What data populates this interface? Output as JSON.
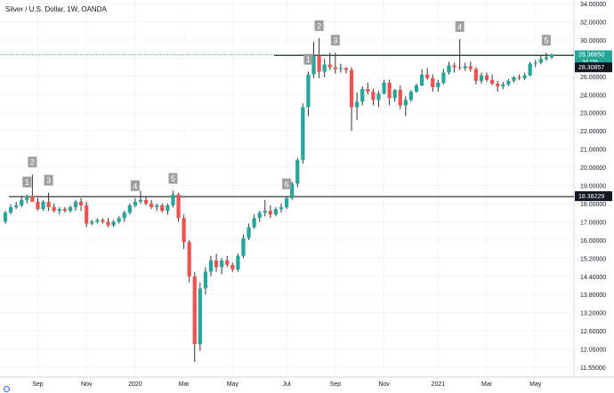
{
  "header": {
    "symbol_title": "Silver / U.S. Dollar, 1W, OANDA"
  },
  "colors": {
    "up": "#26a69a",
    "down": "#ef5350",
    "wick": "#333333",
    "level_line": "#000000",
    "current_line": "#26a69a",
    "label_bg": "#9e9e9e",
    "price_tag_current": "#26a69a",
    "price_tag_level": "#131722"
  },
  "icons": {
    "brand_logo": "tradingview-logo-icon"
  },
  "chart_data": {
    "type": "candlestick",
    "title": "Silver / U.S. Dollar, 1W, OANDA",
    "x_tick_labels": [
      "Sep",
      "Nov",
      "2020",
      "Mar",
      "May",
      "Jul",
      "Sep",
      "Nov",
      "2021",
      "Mar",
      "May"
    ],
    "y_tick_labels": [
      "34.00000",
      "32.00000",
      "30.00000",
      "28.00000",
      "26.00000",
      "24.00000",
      "23.00000",
      "22.00000",
      "21.00000",
      "20.00000",
      "19.00000",
      "18.00000",
      "17.00000",
      "16.00000",
      "15.20000",
      "14.40000",
      "13.80000",
      "13.20000",
      "12.60000",
      "12.05000",
      "11.55000"
    ],
    "y_range": [
      11.3,
      34.2
    ],
    "price_tags": {
      "current_price": "28.36650",
      "countdown": "3d 15h",
      "resistance": "28.30857",
      "support": "18.38229"
    },
    "levels": {
      "resistance": 28.30857,
      "support": 18.38229,
      "current": 28.3665
    },
    "wave_labels": [
      {
        "text": "1",
        "candle": 4
      },
      {
        "text": "2",
        "candle": 5
      },
      {
        "text": "3",
        "candle": 8
      },
      {
        "text": "4",
        "candle": 24
      },
      {
        "text": "5",
        "candle": 31
      },
      {
        "text": "6",
        "candle": 52
      },
      {
        "text": "1",
        "candle": 56
      },
      {
        "text": "2",
        "candle": 58
      },
      {
        "text": "3",
        "candle": 61
      },
      {
        "text": "4",
        "candle": 84
      },
      {
        "text": "5",
        "candle": 100
      }
    ],
    "candles": [
      [
        17.0,
        17.6,
        16.9,
        17.5
      ],
      [
        17.5,
        17.95,
        17.4,
        17.8
      ],
      [
        17.8,
        18.1,
        17.7,
        17.9
      ],
      [
        17.9,
        18.4,
        17.8,
        18.2
      ],
      [
        18.2,
        18.5,
        18.0,
        18.4
      ],
      [
        18.4,
        19.6,
        18.1,
        18.1
      ],
      [
        18.1,
        18.3,
        17.6,
        17.7
      ],
      [
        17.7,
        18.2,
        17.6,
        18.1
      ],
      [
        18.1,
        18.6,
        17.6,
        17.8
      ],
      [
        17.8,
        18.0,
        17.5,
        17.6
      ],
      [
        17.6,
        17.8,
        17.4,
        17.7
      ],
      [
        17.7,
        17.8,
        17.5,
        17.6
      ],
      [
        17.6,
        17.9,
        17.5,
        17.8
      ],
      [
        17.8,
        18.2,
        17.6,
        18.1
      ],
      [
        18.1,
        18.3,
        17.6,
        17.9
      ],
      [
        17.9,
        18.1,
        16.7,
        16.9
      ],
      [
        16.9,
        17.1,
        16.8,
        17.0
      ],
      [
        17.0,
        17.2,
        16.9,
        17.1
      ],
      [
        17.1,
        17.2,
        16.9,
        17.0
      ],
      [
        17.0,
        17.2,
        16.7,
        16.8
      ],
      [
        16.8,
        17.1,
        16.7,
        17.0
      ],
      [
        17.0,
        17.3,
        16.9,
        17.2
      ],
      [
        17.2,
        17.6,
        17.0,
        17.5
      ],
      [
        17.5,
        18.0,
        17.4,
        17.9
      ],
      [
        17.9,
        18.3,
        17.8,
        18.1
      ],
      [
        18.1,
        18.7,
        18.0,
        18.2
      ],
      [
        18.2,
        18.4,
        17.9,
        18.0
      ],
      [
        18.0,
        18.2,
        17.7,
        17.8
      ],
      [
        17.8,
        18.0,
        17.6,
        17.9
      ],
      [
        17.9,
        18.0,
        17.5,
        17.6
      ],
      [
        17.6,
        18.0,
        17.4,
        17.9
      ],
      [
        17.9,
        18.7,
        17.8,
        18.5
      ],
      [
        18.5,
        18.6,
        17.0,
        17.2
      ],
      [
        17.2,
        17.4,
        15.6,
        15.9
      ],
      [
        15.9,
        16.0,
        14.2,
        14.4
      ],
      [
        14.4,
        14.6,
        11.7,
        12.2
      ],
      [
        12.2,
        14.2,
        12.0,
        14.0
      ],
      [
        14.0,
        14.8,
        13.8,
        14.6
      ],
      [
        14.6,
        15.3,
        14.4,
        15.1
      ],
      [
        15.1,
        15.4,
        14.6,
        14.8
      ],
      [
        14.8,
        15.2,
        14.5,
        15.1
      ],
      [
        15.1,
        15.3,
        14.8,
        14.9
      ],
      [
        14.9,
        15.0,
        14.6,
        14.7
      ],
      [
        14.7,
        15.4,
        14.6,
        15.3
      ],
      [
        15.3,
        16.3,
        15.2,
        16.1
      ],
      [
        16.1,
        16.9,
        16.0,
        16.7
      ],
      [
        16.7,
        17.4,
        16.6,
        17.2
      ],
      [
        17.2,
        17.6,
        17.0,
        17.5
      ],
      [
        17.5,
        18.2,
        17.3,
        17.6
      ],
      [
        17.6,
        17.9,
        17.2,
        17.4
      ],
      [
        17.4,
        17.8,
        17.3,
        17.7
      ],
      [
        17.7,
        18.0,
        17.5,
        17.8
      ],
      [
        17.8,
        18.4,
        17.7,
        18.3
      ],
      [
        18.3,
        19.2,
        18.2,
        19.1
      ],
      [
        19.1,
        20.5,
        18.9,
        20.4
      ],
      [
        20.4,
        23.5,
        20.2,
        23.3
      ],
      [
        23.3,
        26.5,
        22.8,
        26.2
      ],
      [
        26.2,
        29.8,
        25.8,
        28.3
      ],
      [
        28.3,
        30.2,
        25.8,
        26.5
      ],
      [
        26.5,
        27.9,
        25.9,
        27.3
      ],
      [
        27.3,
        28.6,
        26.7,
        27.0
      ],
      [
        27.0,
        28.6,
        26.3,
        26.8
      ],
      [
        26.8,
        27.4,
        26.4,
        26.9
      ],
      [
        26.9,
        27.0,
        26.3,
        26.7
      ],
      [
        26.7,
        27.0,
        22.0,
        23.3
      ],
      [
        23.3,
        24.2,
        22.6,
        23.6
      ],
      [
        23.6,
        24.9,
        23.4,
        24.6
      ],
      [
        24.6,
        25.3,
        24.0,
        24.3
      ],
      [
        24.3,
        24.6,
        23.4,
        23.7
      ],
      [
        23.7,
        24.4,
        23.3,
        24.1
      ],
      [
        24.1,
        25.6,
        24.0,
        25.3
      ],
      [
        25.3,
        25.6,
        23.4,
        23.8
      ],
      [
        23.8,
        24.6,
        23.6,
        24.5
      ],
      [
        24.5,
        25.0,
        23.2,
        23.4
      ],
      [
        23.4,
        23.9,
        22.8,
        23.7
      ],
      [
        23.7,
        24.5,
        23.6,
        24.3
      ],
      [
        24.3,
        25.2,
        24.2,
        25.0
      ],
      [
        25.0,
        26.8,
        24.9,
        26.2
      ],
      [
        26.2,
        26.9,
        25.6,
        25.8
      ],
      [
        25.8,
        26.2,
        24.3,
        24.8
      ],
      [
        24.8,
        25.6,
        24.3,
        25.3
      ],
      [
        25.3,
        26.8,
        25.1,
        26.4
      ],
      [
        26.4,
        27.6,
        26.2,
        27.2
      ],
      [
        27.2,
        27.5,
        26.4,
        27.0
      ],
      [
        27.0,
        30.1,
        26.7,
        26.9
      ],
      [
        26.9,
        27.5,
        26.6,
        27.1
      ],
      [
        27.1,
        27.6,
        26.5,
        26.8
      ],
      [
        26.8,
        27.0,
        25.1,
        25.5
      ],
      [
        25.5,
        26.4,
        25.2,
        26.1
      ],
      [
        26.1,
        26.4,
        25.4,
        25.6
      ],
      [
        25.6,
        26.2,
        25.0,
        25.2
      ],
      [
        25.2,
        25.5,
        24.3,
        24.9
      ],
      [
        24.9,
        25.4,
        24.6,
        25.1
      ],
      [
        25.1,
        25.7,
        24.9,
        25.5
      ],
      [
        25.5,
        26.0,
        25.3,
        25.9
      ],
      [
        25.9,
        26.2,
        25.6,
        25.8
      ],
      [
        25.8,
        26.4,
        25.6,
        26.1
      ],
      [
        26.1,
        27.6,
        26.0,
        27.4
      ],
      [
        27.4,
        27.8,
        27.0,
        27.5
      ],
      [
        27.5,
        28.3,
        27.3,
        27.9
      ],
      [
        27.9,
        28.6,
        27.7,
        28.1
      ],
      [
        28.1,
        28.5,
        27.9,
        28.37
      ]
    ]
  }
}
